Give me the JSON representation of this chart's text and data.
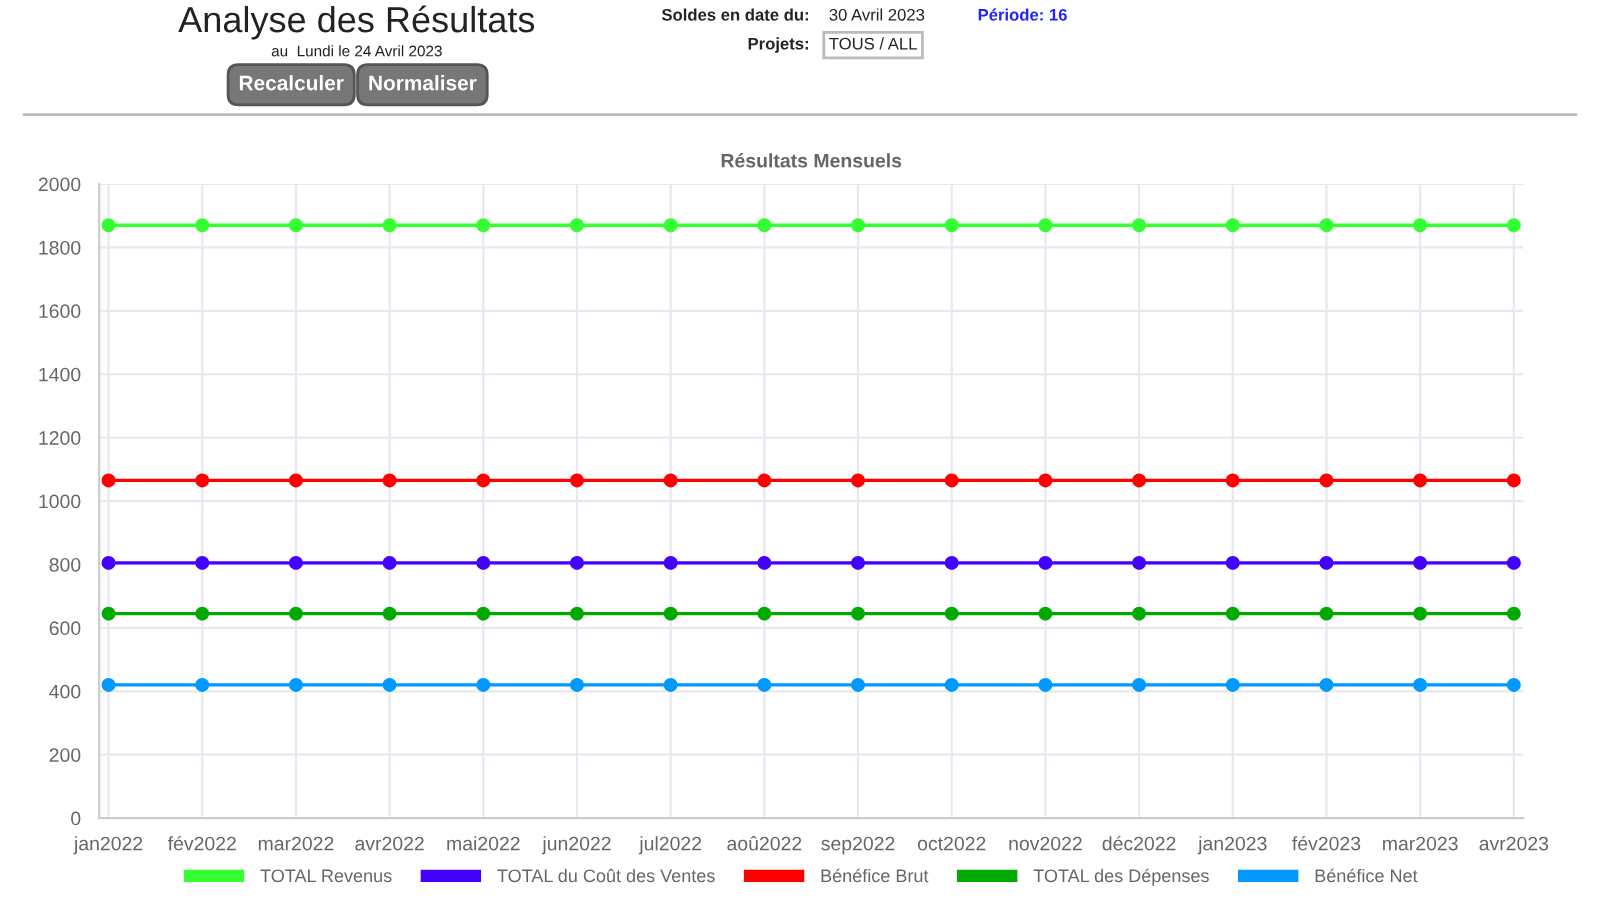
{
  "chart_data": {
    "type": "line",
    "title": "Résultats Mensuels",
    "annotations": [
      "Analyse des Résultats",
      "au  Lundi le 24 Avril 2023",
      "Recalculer",
      "Normaliser",
      "Soldes en date du:",
      "30 Avril 2023",
      "Période: 16",
      "Projets:",
      "TOUS / ALL"
    ],
    "categories": [
      "jan2022",
      "fév2022",
      "mar2022",
      "avr2022",
      "mai2022",
      "jun2022",
      "jul2022",
      "aoû2022",
      "sep2022",
      "oct2022",
      "nov2022",
      "déc2022",
      "jan2023",
      "fév2023",
      "mar2023",
      "avr2023"
    ],
    "series": [
      {
        "name": "TOTAL Revenus",
        "color": "#33ff33",
        "values": [
          1870,
          1870,
          1870,
          1870,
          1870,
          1870,
          1870,
          1870,
          1870,
          1870,
          1870,
          1870,
          1870,
          1870,
          1870,
          1870
        ]
      },
      {
        "name": "TOTAL du Coût des Ventes",
        "color": "#4400ff",
        "values": [
          805,
          805,
          805,
          805,
          805,
          805,
          805,
          805,
          805,
          805,
          805,
          805,
          805,
          805,
          805,
          805
        ]
      },
      {
        "name": "Bénéfice Brut",
        "color": "#ff0000",
        "values": [
          1065,
          1065,
          1065,
          1065,
          1065,
          1065,
          1065,
          1065,
          1065,
          1065,
          1065,
          1065,
          1065,
          1065,
          1065,
          1065
        ]
      },
      {
        "name": "TOTAL des Dépenses",
        "color": "#00aa00",
        "values": [
          645,
          645,
          645,
          645,
          645,
          645,
          645,
          645,
          645,
          645,
          645,
          645,
          645,
          645,
          645,
          645
        ]
      },
      {
        "name": "Bénéfice Net",
        "color": "#0099ff",
        "values": [
          420,
          420,
          420,
          420,
          420,
          420,
          420,
          420,
          420,
          420,
          420,
          420,
          420,
          420,
          420,
          420
        ]
      }
    ],
    "ylim": [
      0,
      2000
    ],
    "yticks": [
      0,
      200,
      400,
      600,
      800,
      1000,
      1200,
      1400,
      1600,
      1800,
      2000
    ],
    "grid": true,
    "legend": "bottom",
    "marker": "circle",
    "line_style": "solid"
  }
}
